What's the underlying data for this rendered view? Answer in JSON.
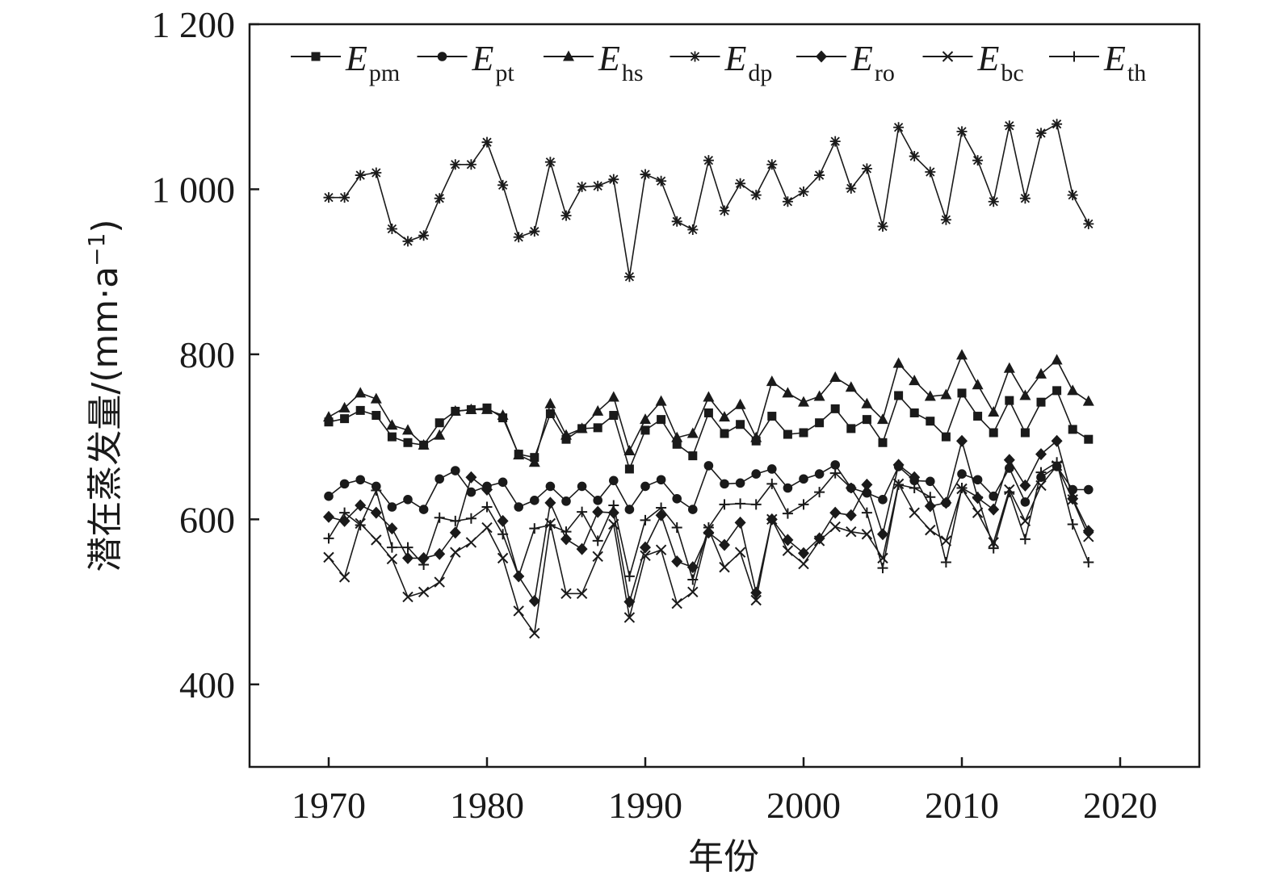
{
  "chart_data": {
    "type": "line",
    "title": "",
    "xlabel": "年份",
    "ylabel": "潜在蒸发量/(mm·a",
    "ylabel_sup": "−1",
    "ylabel_close": ")",
    "xlim": [
      1965,
      2025
    ],
    "ylim": [
      300,
      1200
    ],
    "xticks": [
      1970,
      1980,
      1990,
      2000,
      2010,
      2020
    ],
    "xtick_labels": [
      "1970",
      "1980",
      "1990",
      "2000",
      "2010",
      "2020"
    ],
    "yticks": [
      400,
      600,
      800,
      1000,
      1200
    ],
    "ytick_labels": [
      "400",
      "600",
      "800",
      "1 000",
      "1 200"
    ],
    "grid": false,
    "legend_position": "top",
    "x": [
      1970,
      1971,
      1972,
      1973,
      1974,
      1975,
      1976,
      1977,
      1978,
      1979,
      1980,
      1981,
      1982,
      1983,
      1984,
      1985,
      1986,
      1987,
      1988,
      1989,
      1990,
      1991,
      1992,
      1993,
      1994,
      1995,
      1996,
      1997,
      1998,
      1999,
      2000,
      2001,
      2002,
      2003,
      2004,
      2005,
      2006,
      2007,
      2008,
      2009,
      2010,
      2011,
      2012,
      2013,
      2014,
      2015,
      2016,
      2017,
      2018
    ],
    "series": [
      {
        "main": "E",
        "sub": "pm",
        "marker": "square",
        "values": [
          718,
          722,
          732,
          726,
          700,
          693,
          690,
          717,
          731,
          733,
          735,
          723,
          679,
          675,
          728,
          697,
          710,
          711,
          726,
          661,
          708,
          721,
          691,
          677,
          729,
          704,
          715,
          695,
          725,
          703,
          705,
          717,
          734,
          710,
          721,
          693,
          750,
          729,
          719,
          700,
          753,
          725,
          705,
          744,
          705,
          742,
          756,
          709,
          697
        ]
      },
      {
        "main": "E",
        "sub": "pt",
        "marker": "circle",
        "values": [
          628,
          643,
          648,
          640,
          615,
          624,
          612,
          649,
          659,
          633,
          640,
          645,
          615,
          623,
          640,
          622,
          640,
          623,
          647,
          612,
          640,
          648,
          625,
          612,
          665,
          643,
          644,
          655,
          661,
          638,
          649,
          655,
          666,
          638,
          632,
          624,
          664,
          647,
          646,
          620,
          655,
          648,
          628,
          662,
          621,
          651,
          664,
          636,
          636
        ]
      },
      {
        "main": "E",
        "sub": "hs",
        "marker": "triangle",
        "values": [
          724,
          735,
          753,
          746,
          714,
          708,
          690,
          702,
          731,
          733,
          733,
          726,
          678,
          669,
          740,
          702,
          710,
          731,
          748,
          683,
          721,
          743,
          699,
          704,
          748,
          724,
          739,
          699,
          767,
          753,
          742,
          749,
          772,
          760,
          740,
          721,
          789,
          768,
          749,
          751,
          799,
          763,
          730,
          783,
          750,
          776,
          793,
          756,
          743
        ]
      },
      {
        "main": "E",
        "sub": "dp",
        "marker": "asterisk",
        "values": [
          990,
          990,
          1017,
          1020,
          952,
          937,
          944,
          989,
          1030,
          1030,
          1057,
          1005,
          942,
          949,
          1033,
          968,
          1003,
          1004,
          1012,
          894,
          1018,
          1010,
          961,
          951,
          1035,
          974,
          1007,
          993,
          1030,
          985,
          997,
          1017,
          1058,
          1001,
          1025,
          955,
          1075,
          1040,
          1021,
          963,
          1070,
          1035,
          985,
          1077,
          989,
          1068,
          1079,
          993,
          958
        ]
      },
      {
        "main": "E",
        "sub": "ro",
        "marker": "diamond",
        "values": [
          603,
          598,
          617,
          608,
          589,
          553,
          553,
          558,
          584,
          651,
          636,
          598,
          531,
          501,
          620,
          576,
          564,
          609,
          608,
          500,
          566,
          605,
          549,
          542,
          584,
          569,
          596,
          511,
          600,
          575,
          559,
          577,
          608,
          605,
          642,
          582,
          666,
          651,
          616,
          620,
          695,
          626,
          612,
          672,
          641,
          679,
          695,
          625,
          586
        ]
      },
      {
        "main": "E",
        "sub": "bc",
        "marker": "x",
        "values": [
          554,
          530,
          595,
          575,
          552,
          506,
          512,
          524,
          560,
          572,
          590,
          553,
          489,
          462,
          595,
          510,
          510,
          555,
          594,
          481,
          556,
          563,
          498,
          512,
          588,
          542,
          560,
          502,
          600,
          562,
          546,
          574,
          591,
          585,
          582,
          553,
          643,
          608,
          587,
          574,
          637,
          608,
          572,
          636,
          598,
          641,
          665,
          624,
          579
        ]
      },
      {
        "main": "E",
        "sub": "th",
        "marker": "plus",
        "values": [
          577,
          608,
          593,
          635,
          566,
          566,
          545,
          602,
          598,
          601,
          615,
          582,
          531,
          589,
          593,
          585,
          609,
          574,
          617,
          531,
          599,
          614,
          590,
          527,
          590,
          618,
          619,
          618,
          643,
          607,
          618,
          633,
          656,
          638,
          608,
          541,
          642,
          638,
          627,
          548,
          638,
          627,
          565,
          633,
          576,
          657,
          669,
          594,
          548
        ]
      }
    ]
  }
}
